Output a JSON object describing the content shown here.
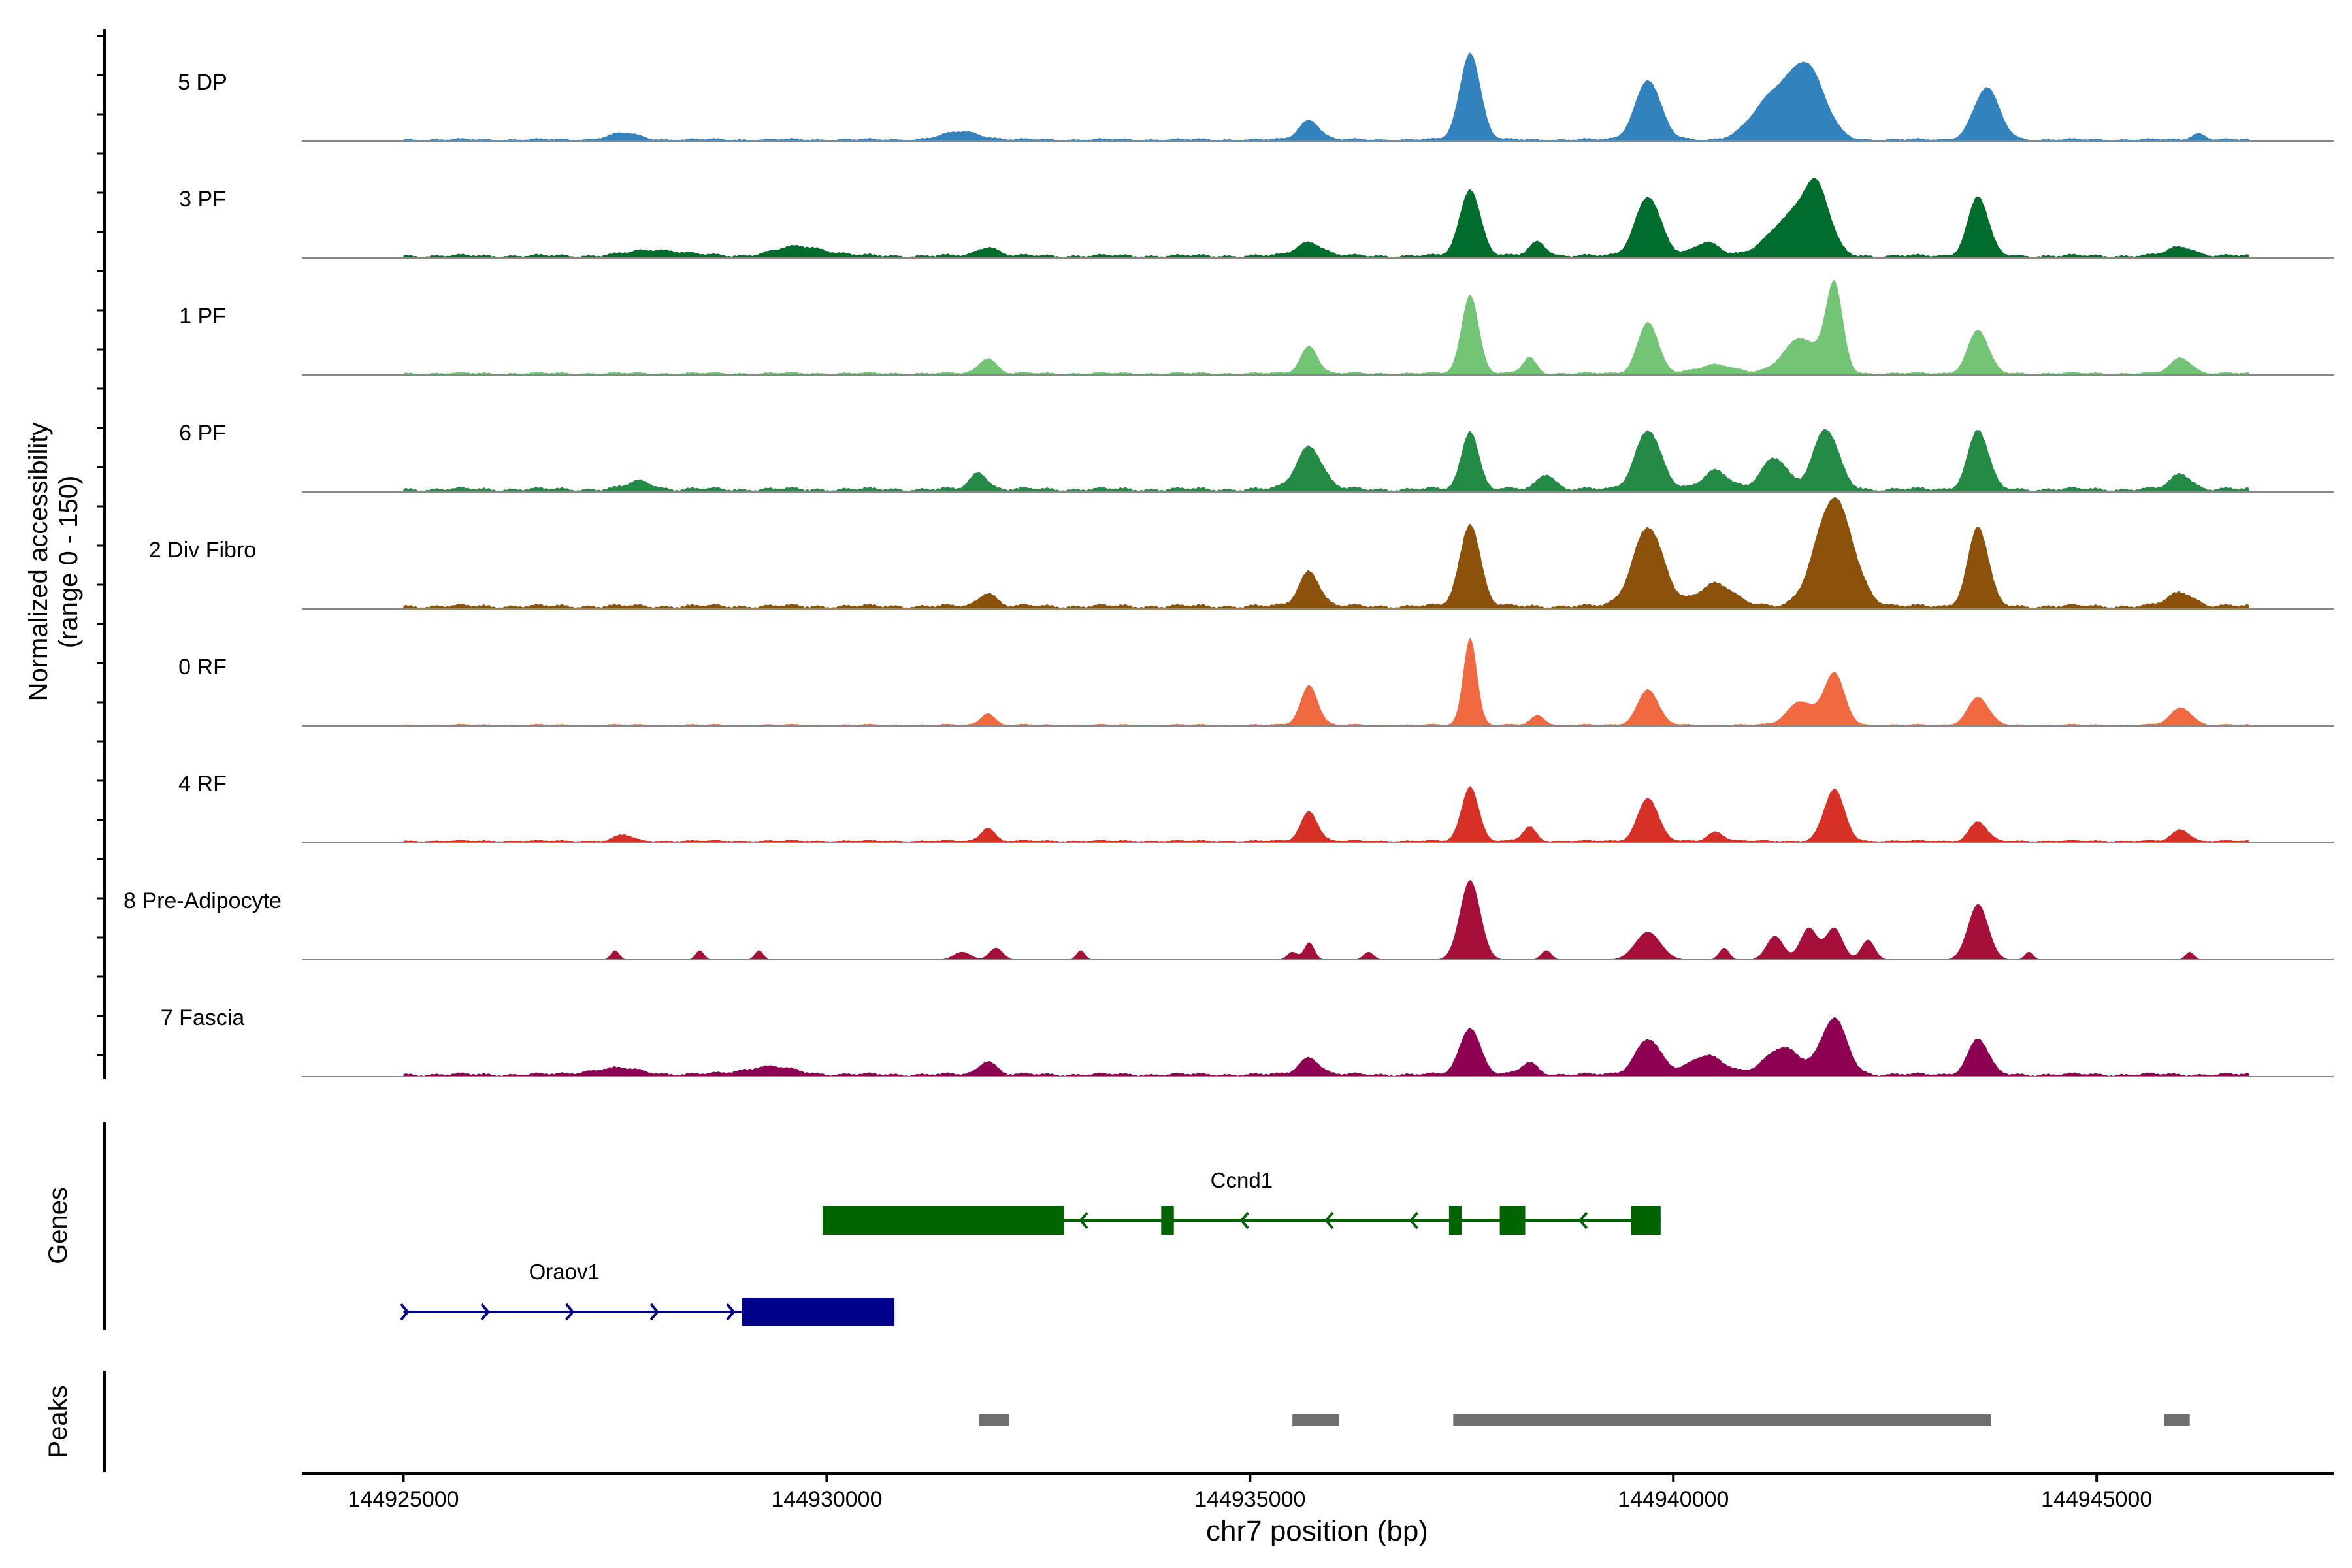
{
  "chart_data": {
    "type": "area",
    "title": "",
    "xlabel": "chr7 position (bp)",
    "ylabel": "Normalized accessibility",
    "ylabel_sub": "(range 0 - 150)",
    "xlim": [
      144923800,
      144947800
    ],
    "xticks": [
      144925000,
      144930000,
      144935000,
      144940000,
      144945000
    ],
    "xtick_labels": [
      "144925000",
      "144930000",
      "144935000",
      "144940000",
      "144945000"
    ],
    "ylim": [
      0,
      150
    ],
    "region": [
      144925000,
      144946800
    ],
    "tracks": [
      {
        "name": "5 DP",
        "color": "#3182BD",
        "noise": 3,
        "peaks": [
          [
            144927600,
            8,
            180
          ],
          [
            144931600,
            10,
            220
          ],
          [
            144935700,
            25,
            120
          ],
          [
            144937600,
            110,
            120
          ],
          [
            144939700,
            75,
            150
          ],
          [
            144941200,
            55,
            250
          ],
          [
            144941600,
            80,
            200
          ],
          [
            144943700,
            65,
            150
          ],
          [
            144946200,
            8,
            80
          ]
        ]
      },
      {
        "name": "3 PF",
        "color": "#006D2C",
        "noise": 4,
        "peaks": [
          [
            144928000,
            8,
            300
          ],
          [
            144929700,
            12,
            300
          ],
          [
            144931900,
            12,
            120
          ],
          [
            144935700,
            18,
            150
          ],
          [
            144937600,
            85,
            120
          ],
          [
            144938400,
            18,
            100
          ],
          [
            144939700,
            75,
            150
          ],
          [
            144940400,
            18,
            150
          ],
          [
            144941400,
            50,
            250
          ],
          [
            144941700,
            70,
            150
          ],
          [
            144943600,
            75,
            120
          ],
          [
            144946000,
            12,
            150
          ]
        ]
      },
      {
        "name": "1 PF",
        "color": "#74C476",
        "noise": 3,
        "peaks": [
          [
            144931900,
            20,
            100
          ],
          [
            144935700,
            35,
            100
          ],
          [
            144937600,
            100,
            100
          ],
          [
            144938300,
            20,
            80
          ],
          [
            144939700,
            65,
            120
          ],
          [
            144940500,
            12,
            200
          ],
          [
            144941500,
            45,
            200
          ],
          [
            144941900,
            110,
            100
          ],
          [
            144943600,
            55,
            120
          ],
          [
            144946000,
            20,
            120
          ]
        ]
      },
      {
        "name": "6 PF",
        "color": "#238B45",
        "noise": 5,
        "peaks": [
          [
            144927800,
            10,
            150
          ],
          [
            144931800,
            22,
            100
          ],
          [
            144935700,
            55,
            150
          ],
          [
            144937600,
            75,
            100
          ],
          [
            144938500,
            20,
            100
          ],
          [
            144939700,
            75,
            150
          ],
          [
            144940500,
            25,
            150
          ],
          [
            144941200,
            40,
            150
          ],
          [
            144941800,
            75,
            150
          ],
          [
            144943600,
            75,
            120
          ],
          [
            144946000,
            20,
            120
          ]
        ]
      },
      {
        "name": "2 Div Fibro",
        "color": "#8C510A",
        "noise": 5,
        "peaks": [
          [
            144931900,
            18,
            100
          ],
          [
            144935700,
            45,
            120
          ],
          [
            144937600,
            105,
            120
          ],
          [
            144939700,
            100,
            180
          ],
          [
            144940500,
            30,
            200
          ],
          [
            144941900,
            135,
            220
          ],
          [
            144943600,
            100,
            120
          ],
          [
            144946000,
            18,
            150
          ]
        ]
      },
      {
        "name": "0 RF",
        "color": "#F16941",
        "noise": 2,
        "peaks": [
          [
            144931900,
            15,
            80
          ],
          [
            144935700,
            50,
            100
          ],
          [
            144937600,
            110,
            80
          ],
          [
            144938400,
            12,
            80
          ],
          [
            144939700,
            45,
            120
          ],
          [
            144941500,
            30,
            150
          ],
          [
            144941900,
            65,
            120
          ],
          [
            144943600,
            35,
            120
          ],
          [
            144946000,
            22,
            120
          ]
        ]
      },
      {
        "name": "4 RF",
        "color": "#D73027",
        "noise": 3,
        "peaks": [
          [
            144927600,
            8,
            100
          ],
          [
            144931900,
            18,
            80
          ],
          [
            144935700,
            38,
            100
          ],
          [
            144937600,
            70,
            100
          ],
          [
            144938300,
            18,
            80
          ],
          [
            144939700,
            55,
            120
          ],
          [
            144940500,
            12,
            100
          ],
          [
            144941900,
            65,
            120
          ],
          [
            144943600,
            25,
            100
          ],
          [
            144946000,
            15,
            100
          ]
        ]
      },
      {
        "name": "8 Pre-Adipocyte",
        "color": "#A50F3A",
        "noise": 0,
        "peaks": [
          [
            144927500,
            12,
            50
          ],
          [
            144928500,
            12,
            50
          ],
          [
            144929200,
            12,
            50
          ],
          [
            144931600,
            10,
            100
          ],
          [
            144932000,
            15,
            80
          ],
          [
            144933000,
            12,
            50
          ],
          [
            144935500,
            10,
            60
          ],
          [
            144935700,
            22,
            60
          ],
          [
            144936400,
            10,
            60
          ],
          [
            144937600,
            100,
            120
          ],
          [
            144938500,
            12,
            60
          ],
          [
            144939700,
            35,
            150
          ],
          [
            144940600,
            15,
            60
          ],
          [
            144941200,
            30,
            100
          ],
          [
            144941600,
            40,
            100
          ],
          [
            144941900,
            40,
            100
          ],
          [
            144942300,
            25,
            80
          ],
          [
            144943600,
            70,
            120
          ],
          [
            144944200,
            10,
            50
          ],
          [
            144946100,
            10,
            50
          ]
        ]
      },
      {
        "name": "7 Fascia",
        "color": "#8E0152",
        "noise": 4,
        "peaks": [
          [
            144927500,
            8,
            300
          ],
          [
            144929300,
            10,
            300
          ],
          [
            144931900,
            18,
            100
          ],
          [
            144935700,
            22,
            120
          ],
          [
            144937600,
            60,
            120
          ],
          [
            144938300,
            15,
            100
          ],
          [
            144939700,
            45,
            150
          ],
          [
            144940400,
            25,
            200
          ],
          [
            144941300,
            35,
            200
          ],
          [
            144941900,
            70,
            150
          ],
          [
            144943600,
            45,
            120
          ]
        ]
      }
    ],
    "genes": [
      {
        "name": "Ccnd1",
        "strand": "-",
        "color": "#006400",
        "start": 144929950,
        "end": 144939850,
        "exons": [
          [
            144929950,
            144932800
          ],
          [
            144933950,
            144934100
          ],
          [
            144937350,
            144937500
          ],
          [
            144937950,
            144938250
          ],
          [
            144939500,
            144939850
          ]
        ],
        "arrows": [
          144933000,
          144934900,
          144935900,
          144936900,
          144938900
        ]
      },
      {
        "name": "Oraov1",
        "strand": "+",
        "color": "#00008B",
        "start": 144925000,
        "end": 144930800,
        "exons": [
          [
            144929000,
            144930800
          ]
        ],
        "arrows": [
          144925050,
          144926000,
          144927000,
          144928000,
          144928900
        ]
      }
    ],
    "peaks_track": [
      [
        144931800,
        144932150
      ],
      [
        144935500,
        144936050
      ],
      [
        144937400,
        144943750
      ],
      [
        144945800,
        144946100
      ]
    ],
    "panel_labels": {
      "genes": "Genes",
      "peaks": "Peaks"
    }
  }
}
